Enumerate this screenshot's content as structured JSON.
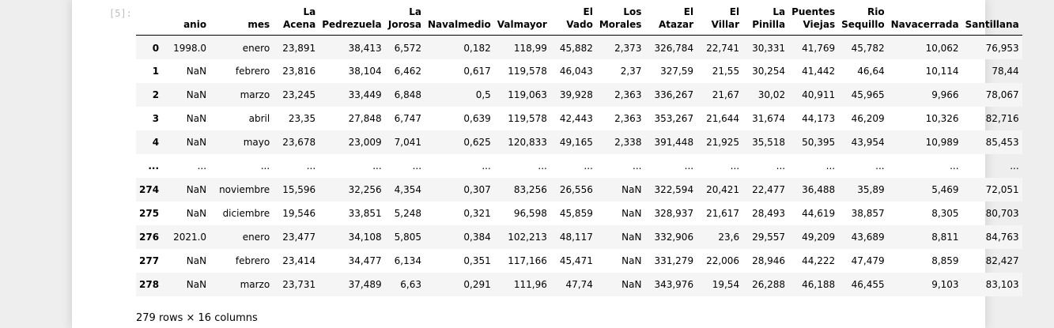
{
  "cell": {
    "prompt": "[5]:",
    "footer": "279 rows × 16 columns"
  },
  "table": {
    "index_header": "",
    "columns": [
      [
        "anio"
      ],
      [
        "mes"
      ],
      [
        "La",
        "Acena"
      ],
      [
        "Pedrezuela"
      ],
      [
        "La",
        "Jorosa"
      ],
      [
        "Navalmedio"
      ],
      [
        "Valmayor"
      ],
      [
        "El",
        "Vado"
      ],
      [
        "Los",
        "Morales"
      ],
      [
        "El",
        "Atazar"
      ],
      [
        "El",
        "Villar"
      ],
      [
        "La",
        "Pinilla"
      ],
      [
        "Puentes",
        "Viejas"
      ],
      [
        "Rio",
        "Sequillo"
      ],
      [
        "Navacerrada"
      ],
      [
        "Santillana"
      ]
    ],
    "rows": [
      {
        "index": "0",
        "values": [
          "1998.0",
          "enero",
          "23,891",
          "38,413",
          "6,572",
          "0,182",
          "118,99",
          "45,882",
          "2,373",
          "326,784",
          "22,741",
          "30,331",
          "41,769",
          "45,782",
          "10,062",
          "76,953"
        ]
      },
      {
        "index": "1",
        "values": [
          "NaN",
          "febrero",
          "23,816",
          "38,104",
          "6,462",
          "0,617",
          "119,578",
          "46,043",
          "2,37",
          "327,59",
          "21,55",
          "30,254",
          "41,442",
          "46,64",
          "10,114",
          "78,44"
        ]
      },
      {
        "index": "2",
        "values": [
          "NaN",
          "marzo",
          "23,245",
          "33,449",
          "6,848",
          "0,5",
          "119,063",
          "39,928",
          "2,363",
          "336,267",
          "21,67",
          "30,02",
          "40,911",
          "45,965",
          "9,966",
          "78,067"
        ]
      },
      {
        "index": "3",
        "values": [
          "NaN",
          "abril",
          "23,35",
          "27,848",
          "6,747",
          "0,639",
          "119,578",
          "42,443",
          "2,363",
          "353,267",
          "21,644",
          "31,674",
          "44,173",
          "46,209",
          "10,326",
          "82,716"
        ]
      },
      {
        "index": "4",
        "values": [
          "NaN",
          "mayo",
          "23,678",
          "23,009",
          "7,041",
          "0,625",
          "120,833",
          "49,165",
          "2,338",
          "391,448",
          "21,925",
          "35,518",
          "50,395",
          "43,954",
          "10,989",
          "85,453"
        ]
      },
      {
        "index": "...",
        "values": [
          "...",
          "...",
          "...",
          "...",
          "...",
          "...",
          "...",
          "...",
          "...",
          "...",
          "...",
          "...",
          "...",
          "...",
          "...",
          "..."
        ]
      },
      {
        "index": "274",
        "values": [
          "NaN",
          "noviembre",
          "15,596",
          "32,256",
          "4,354",
          "0,307",
          "83,256",
          "26,556",
          "NaN",
          "322,594",
          "20,421",
          "22,477",
          "36,488",
          "35,89",
          "5,469",
          "72,051"
        ]
      },
      {
        "index": "275",
        "values": [
          "NaN",
          "diciembre",
          "19,546",
          "33,851",
          "5,248",
          "0,321",
          "96,598",
          "45,859",
          "NaN",
          "328,937",
          "21,617",
          "28,493",
          "44,619",
          "38,857",
          "8,305",
          "80,703"
        ]
      },
      {
        "index": "276",
        "values": [
          "2021.0",
          "enero",
          "23,477",
          "34,108",
          "5,805",
          "0,384",
          "102,213",
          "48,117",
          "NaN",
          "332,906",
          "23,6",
          "29,557",
          "49,209",
          "43,689",
          "8,811",
          "84,763"
        ]
      },
      {
        "index": "277",
        "values": [
          "NaN",
          "febrero",
          "23,414",
          "34,477",
          "6,134",
          "0,351",
          "117,166",
          "45,471",
          "NaN",
          "331,279",
          "22,006",
          "28,946",
          "44,222",
          "47,479",
          "8,859",
          "82,427"
        ]
      },
      {
        "index": "278",
        "values": [
          "NaN",
          "marzo",
          "23,731",
          "37,489",
          "6,63",
          "0,291",
          "111,96",
          "47,74",
          "NaN",
          "343,976",
          "19,54",
          "26,288",
          "46,188",
          "46,455",
          "9,103",
          "83,103"
        ]
      }
    ]
  }
}
